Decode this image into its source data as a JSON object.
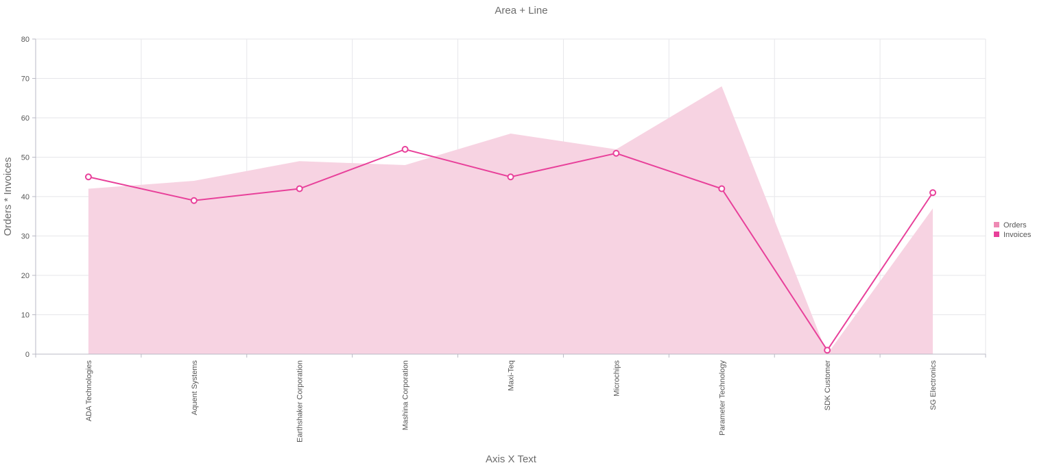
{
  "chart_data": {
    "type": "area",
    "title": "Area + Line",
    "xlabel": "Axis X Text",
    "ylabel": "Orders * Invoices",
    "categories": [
      "ADA Technologies",
      "Aquent Systems",
      "Earthshaker Corporation",
      "Mashina Corporation",
      "Maxi-Teq",
      "Microchips",
      "Parameter Technology",
      "SDK Customer",
      "SG Electronics"
    ],
    "ylim": [
      0,
      80
    ],
    "yticks": [
      "0",
      "10",
      "20",
      "30",
      "40",
      "50",
      "60",
      "70",
      "80"
    ],
    "grid": true,
    "legend_position": "right",
    "series": [
      {
        "name": "Orders",
        "kind": "area",
        "color": "#f7d3e2",
        "legend_color": "#ee8ab4",
        "values": [
          42,
          44,
          49,
          48,
          56,
          52,
          68,
          0,
          37
        ]
      },
      {
        "name": "Invoices",
        "kind": "line",
        "color": "#e8409a",
        "legend_color": "#e8409a",
        "values": [
          45,
          39,
          42,
          52,
          45,
          51,
          42,
          1,
          41
        ]
      }
    ]
  }
}
